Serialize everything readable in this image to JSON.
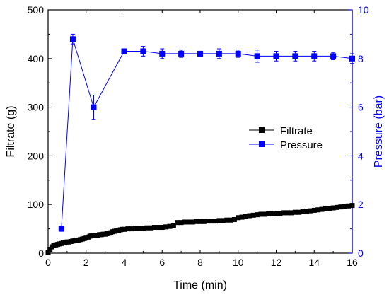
{
  "chart_data": {
    "type": "line",
    "xlabel": "Time (min)",
    "ylabel": "Filtrate (g)",
    "y2label": "Pressure (bar)",
    "xlim": [
      0,
      16
    ],
    "ylim": [
      0,
      500
    ],
    "y2lim": [
      0,
      10
    ],
    "xticks": [
      0,
      2,
      4,
      6,
      8,
      10,
      12,
      14,
      16
    ],
    "yticks": [
      0,
      100,
      200,
      300,
      400,
      500
    ],
    "y2ticks": [
      0,
      2,
      4,
      6,
      8,
      10
    ],
    "grid": false,
    "legend_position": "center-right",
    "colors": {
      "filtrate": "#000000",
      "pressure": "#0000ff"
    },
    "series": [
      {
        "name": "Filtrate",
        "axis": "left",
        "color": "#000000",
        "marker": "square",
        "x": [
          0,
          0.1,
          0.2,
          0.3,
          0.4,
          0.5,
          0.6,
          0.7,
          0.8,
          0.9,
          1.0,
          1.1,
          1.2,
          1.3,
          1.4,
          1.5,
          1.6,
          1.7,
          1.8,
          1.9,
          2.0,
          2.1,
          2.2,
          2.3,
          2.4,
          2.5,
          2.6,
          2.7,
          2.8,
          2.9,
          3.0,
          3.1,
          3.2,
          3.3,
          3.4,
          3.5,
          3.6,
          3.7,
          3.8,
          3.9,
          4.0,
          4.2,
          4.4,
          4.6,
          4.8,
          5.0,
          5.2,
          5.4,
          5.6,
          5.8,
          6.0,
          6.2,
          6.4,
          6.6,
          6.8,
          7.0,
          7.2,
          7.4,
          7.6,
          7.8,
          8.0,
          8.2,
          8.4,
          8.6,
          8.8,
          9.0,
          9.2,
          9.4,
          9.6,
          9.8,
          10.0,
          10.2,
          10.4,
          10.6,
          10.8,
          11.0,
          11.2,
          11.4,
          11.6,
          11.8,
          12.0,
          12.2,
          12.4,
          12.6,
          12.8,
          13.0,
          13.2,
          13.4,
          13.6,
          13.8,
          14.0,
          14.2,
          14.4,
          14.6,
          14.8,
          15.0,
          15.2,
          15.4,
          15.6,
          15.8,
          16.0
        ],
        "y": [
          2,
          8,
          13,
          16,
          17,
          18,
          19,
          20,
          21,
          22,
          23,
          23,
          24,
          25,
          26,
          26,
          27,
          28,
          29,
          30,
          31,
          33,
          35,
          36,
          36,
          37,
          37,
          38,
          38,
          39,
          39,
          40,
          41,
          42,
          44,
          45,
          46,
          47,
          48,
          49,
          49,
          50,
          50,
          51,
          51,
          51,
          52,
          52,
          53,
          53,
          53,
          54,
          55,
          56,
          63,
          63,
          64,
          64,
          64,
          65,
          65,
          65,
          66,
          66,
          66,
          67,
          67,
          68,
          68,
          69,
          73,
          74,
          76,
          77,
          78,
          79,
          80,
          80,
          81,
          81,
          82,
          82,
          83,
          83,
          83,
          84,
          84,
          85,
          86,
          87,
          88,
          89,
          90,
          91,
          92,
          93,
          94,
          95,
          96,
          97,
          98
        ]
      },
      {
        "name": "Pressure",
        "axis": "right",
        "color": "#0000ff",
        "marker": "square",
        "x": [
          0.7,
          1.3,
          2.4,
          4.0,
          5.0,
          6.0,
          7.0,
          8.0,
          9.0,
          10.0,
          11.0,
          12.0,
          13.0,
          14.0,
          15.0,
          16.0
        ],
        "y": [
          1.0,
          8.8,
          6.0,
          8.3,
          8.3,
          8.2,
          8.2,
          8.2,
          8.2,
          8.2,
          8.1,
          8.1,
          8.1,
          8.1,
          8.1,
          8.0
        ],
        "error": [
          0.0,
          0.2,
          0.5,
          0.05,
          0.2,
          0.2,
          0.15,
          0.1,
          0.2,
          0.15,
          0.25,
          0.2,
          0.2,
          0.2,
          0.15,
          0.2
        ]
      }
    ]
  }
}
